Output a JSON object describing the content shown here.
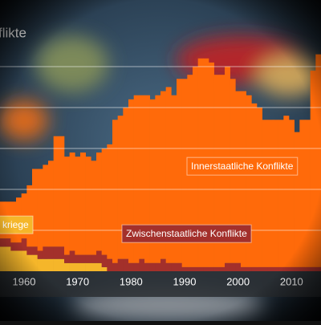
{
  "chart_data": {
    "type": "stacked_bar",
    "title": "flikte",
    "x": [
      1956,
      1957,
      1958,
      1959,
      1960,
      1961,
      1962,
      1963,
      1964,
      1965,
      1966,
      1967,
      1968,
      1969,
      1970,
      1971,
      1972,
      1973,
      1974,
      1975,
      1976,
      1977,
      1978,
      1979,
      1980,
      1981,
      1982,
      1983,
      1984,
      1985,
      1986,
      1987,
      1988,
      1989,
      1990,
      1991,
      1992,
      1993,
      1994,
      1995,
      1996,
      1997,
      1998,
      1999,
      2000,
      2001,
      2002,
      2003,
      2004,
      2005,
      2006,
      2007,
      2008,
      2009,
      2010,
      2011,
      2012,
      2013,
      2014,
      2015
    ],
    "series": [
      {
        "name": "kriege",
        "color": "#f5b62a",
        "values": [
          6,
          6,
          5,
          5,
          5,
          4,
          4,
          3,
          3,
          3,
          3,
          3,
          2,
          2,
          2,
          2,
          2,
          2,
          2,
          1,
          0,
          0,
          0,
          0,
          0,
          0,
          0,
          0,
          0,
          0,
          0,
          0,
          0,
          0,
          0,
          0,
          0,
          0,
          0,
          0,
          0,
          0,
          0,
          0,
          0,
          0,
          0,
          0,
          0,
          0,
          0,
          0,
          0,
          0,
          0,
          0,
          0,
          0,
          0,
          0
        ]
      },
      {
        "name": "Zwischenstaatliche Konflikte",
        "color": "#a3302b",
        "values": [
          2,
          2,
          2,
          2,
          3,
          2,
          2,
          2,
          3,
          3,
          3,
          3,
          2,
          3,
          2,
          2,
          2,
          2,
          3,
          3,
          3,
          2,
          3,
          3,
          2,
          2,
          3,
          2,
          2,
          2,
          3,
          2,
          2,
          2,
          1,
          1,
          1,
          1,
          1,
          1,
          1,
          1,
          2,
          2,
          2,
          1,
          1,
          1,
          1,
          1,
          1,
          1,
          1,
          1,
          1,
          1,
          1,
          1,
          1,
          1
        ]
      },
      {
        "name": "Innerstaatliche Konflikte",
        "color": "#ff6a0a",
        "values": [
          9,
          9,
          10,
          11,
          11,
          15,
          19,
          20,
          20,
          21,
          27,
          27,
          24,
          24,
          24,
          25,
          24,
          23,
          24,
          26,
          28,
          35,
          35,
          37,
          40,
          41,
          40,
          41,
          40,
          41,
          41,
          43,
          41,
          45,
          46,
          47,
          49,
          51,
          51,
          50,
          47,
          47,
          48,
          45,
          42,
          43,
          42,
          40,
          39,
          36,
          36,
          36,
          36,
          37,
          36,
          33,
          36,
          36,
          48,
          52
        ]
      }
    ],
    "xlim": [
      1955.5,
      2015.5
    ],
    "xticks": [
      1960,
      1970,
      1980,
      1990,
      2000,
      2010
    ],
    "ylim": [
      0,
      60
    ],
    "yticks": [
      10,
      20,
      30,
      40,
      50
    ],
    "grid": true
  }
}
